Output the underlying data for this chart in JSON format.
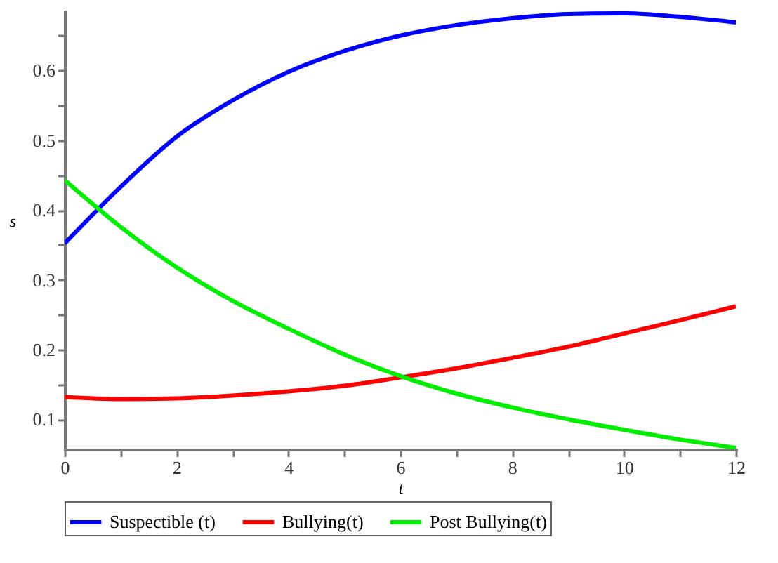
{
  "chart_data": {
    "type": "line",
    "xlabel": "t",
    "ylabel": "s",
    "x": [
      0,
      1,
      2,
      3,
      4,
      5,
      6,
      7,
      8,
      9,
      10,
      11,
      12
    ],
    "series": [
      {
        "name": "Suspectible (t)",
        "color": "#0000ff",
        "values": [
          0.352,
          0.433,
          0.505,
          0.557,
          0.598,
          0.628,
          0.65,
          0.665,
          0.675,
          0.681,
          0.682,
          0.677,
          0.669
        ]
      },
      {
        "name": "Bullying(t)",
        "color": "#ff0000",
        "values": [
          0.132,
          0.129,
          0.13,
          0.134,
          0.14,
          0.148,
          0.16,
          0.173,
          0.188,
          0.204,
          0.223,
          0.242,
          0.262
        ]
      },
      {
        "name": "Post Bullying(t)",
        "color": "#00ee00",
        "values": [
          0.443,
          0.376,
          0.318,
          0.27,
          0.23,
          0.193,
          0.162,
          0.137,
          0.117,
          0.1,
          0.085,
          0.071,
          0.059
        ]
      }
    ],
    "xlim": [
      0,
      12
    ],
    "ylim": [
      0.057,
      0.685
    ],
    "xticks": [
      0,
      {
        "value": 1,
        "label": null
      },
      2,
      {
        "value": 3,
        "label": null
      },
      4,
      {
        "value": 5,
        "label": null
      },
      6,
      {
        "value": 7,
        "label": null
      },
      8,
      {
        "value": 9,
        "label": null
      },
      10,
      {
        "value": 11,
        "label": null
      },
      12
    ],
    "yticks": [
      0.1,
      {
        "value": 0.15,
        "label": null
      },
      0.2,
      {
        "value": 0.25,
        "label": null
      },
      0.3,
      {
        "value": 0.35,
        "label": null
      },
      0.4,
      {
        "value": 0.45,
        "label": null
      },
      0.5,
      {
        "value": 0.55,
        "label": null
      },
      0.6,
      {
        "value": 0.65,
        "label": null
      }
    ],
    "grid": false,
    "legend": "bottom",
    "marker": "none",
    "line_style": "solid"
  }
}
